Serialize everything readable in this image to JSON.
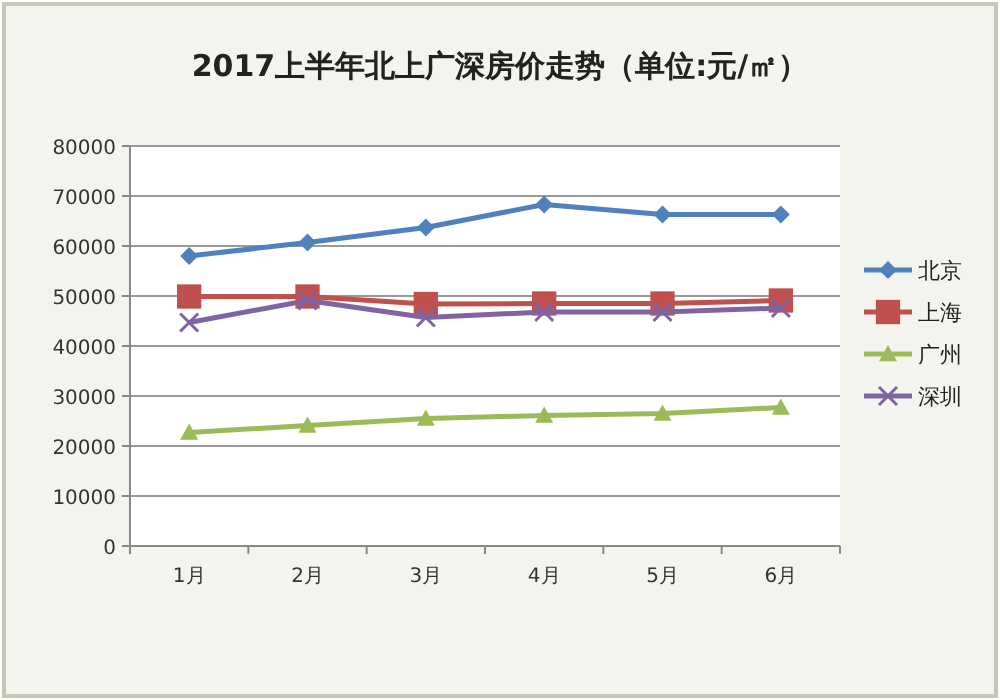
{
  "chart_data": {
    "type": "line",
    "title": "2017上半年北上广深房价走势（单位:元/㎡）",
    "categories": [
      "1月",
      "2月",
      "3月",
      "4月",
      "5月",
      "6月"
    ],
    "series": [
      {
        "name": "北京",
        "color": "#4f81bd",
        "marker": "diamond",
        "values": [
          58000,
          60700,
          63700,
          68300,
          66300,
          66300
        ]
      },
      {
        "name": "上海",
        "color": "#c0504d",
        "marker": "square",
        "values": [
          49900,
          49900,
          48400,
          48500,
          48500,
          49100
        ]
      },
      {
        "name": "广州",
        "color": "#9bbb59",
        "marker": "triangle",
        "values": [
          22700,
          24100,
          25500,
          26100,
          26500,
          27700
        ]
      },
      {
        "name": "深圳",
        "color": "#8064a2",
        "marker": "cross",
        "values": [
          44700,
          49100,
          45700,
          46800,
          46800,
          47600
        ]
      }
    ],
    "ylim": [
      0,
      80000
    ],
    "yticks": [
      0,
      10000,
      20000,
      30000,
      40000,
      50000,
      60000,
      70000,
      80000
    ],
    "grid": "y",
    "legend": "right"
  }
}
